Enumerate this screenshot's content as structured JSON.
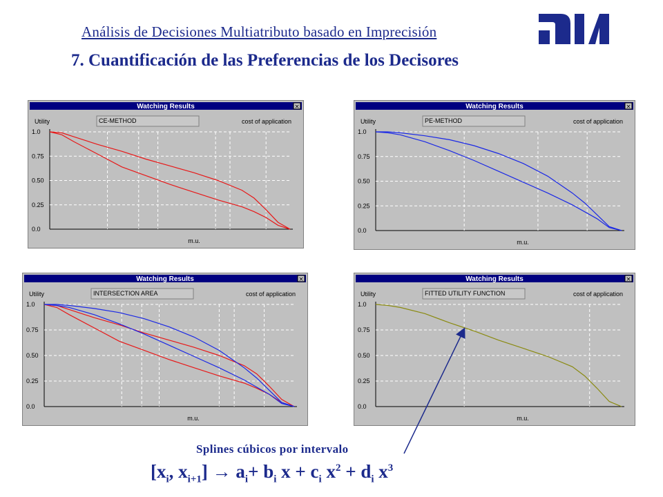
{
  "header": {
    "title": "Análisis de Decisiones Multiatributo basado en Imprecisión",
    "section_title": "7. Cuantificación de las Preferencias de los Decisores",
    "logo_label": "DIA"
  },
  "caption": {
    "text": "Splines cúbicos por intervalo",
    "formula": {
      "open": "[x",
      "i1": "i",
      "comma": ", x",
      "i2": "i+1",
      "close": "]",
      "arrow": "→",
      "a": " a",
      "ai": "i",
      "b": "+ b",
      "bi": "i",
      "bx": " x + c",
      "ci": "i",
      "cx": " x",
      "c2": "2",
      "d": " + d",
      "di": "i",
      "dx": " x",
      "d3": "3"
    }
  },
  "colors": {
    "red": "#e81818",
    "blue": "#1a28e6",
    "olive": "#8a8a10",
    "title_bar": "#000080",
    "text_blue": "#1c2a8c"
  },
  "chart_data": [
    {
      "type": "line",
      "window_title": "Watching Results",
      "ylabel": "Utility",
      "method": "CE-METHOD",
      "right_label": "cost of application",
      "xlabel": "m.u.",
      "yticks": [
        "1.0",
        "0.75",
        "0.50",
        "0.25",
        "0.0"
      ],
      "ylim": [
        0,
        1
      ],
      "xlim": [
        0,
        1
      ],
      "grid": true,
      "series": [
        {
          "color": "red",
          "x": [
            0,
            0.05,
            0.1,
            0.2,
            0.3,
            0.4,
            0.5,
            0.6,
            0.7,
            0.8,
            0.85,
            0.9,
            0.95,
            1.0
          ],
          "y": [
            1.0,
            0.99,
            0.95,
            0.87,
            0.8,
            0.72,
            0.65,
            0.58,
            0.5,
            0.4,
            0.32,
            0.2,
            0.07,
            0.0
          ]
        },
        {
          "color": "red",
          "x": [
            0,
            0.05,
            0.1,
            0.2,
            0.3,
            0.4,
            0.5,
            0.6,
            0.7,
            0.8,
            0.85,
            0.9,
            0.95,
            1.0
          ],
          "y": [
            1.0,
            0.97,
            0.9,
            0.77,
            0.64,
            0.55,
            0.46,
            0.38,
            0.3,
            0.23,
            0.18,
            0.12,
            0.04,
            0.0
          ]
        }
      ]
    },
    {
      "type": "line",
      "window_title": "Watching Results",
      "ylabel": "Utility",
      "method": "PE-METHOD",
      "right_label": "cost of application",
      "xlabel": "m.u.",
      "yticks": [
        "1.0",
        "0.75",
        "0.50",
        "0.25",
        "0.0"
      ],
      "ylim": [
        0,
        1
      ],
      "xlim": [
        0,
        1
      ],
      "grid": true,
      "series": [
        {
          "color": "blue",
          "x": [
            0,
            0.05,
            0.1,
            0.2,
            0.3,
            0.4,
            0.5,
            0.6,
            0.7,
            0.8,
            0.85,
            0.9,
            0.95,
            1.0
          ],
          "y": [
            1.0,
            1.0,
            0.99,
            0.96,
            0.92,
            0.86,
            0.78,
            0.68,
            0.55,
            0.38,
            0.28,
            0.16,
            0.04,
            0.0
          ]
        },
        {
          "color": "blue",
          "x": [
            0,
            0.05,
            0.1,
            0.2,
            0.3,
            0.4,
            0.5,
            0.6,
            0.7,
            0.8,
            0.85,
            0.9,
            0.95,
            1.0
          ],
          "y": [
            1.0,
            0.99,
            0.97,
            0.9,
            0.81,
            0.71,
            0.6,
            0.49,
            0.38,
            0.26,
            0.19,
            0.12,
            0.03,
            0.0
          ]
        }
      ]
    },
    {
      "type": "line",
      "window_title": "Watching Results",
      "ylabel": "Utility",
      "method": "INTERSECTION AREA",
      "right_label": "cost of application",
      "xlabel": "m.u.",
      "yticks": [
        "1.0",
        "0.75",
        "0.50",
        "0.25",
        "0.0"
      ],
      "ylim": [
        0,
        1
      ],
      "xlim": [
        0,
        1
      ],
      "grid": true,
      "series": [
        {
          "color": "red",
          "x": [
            0,
            0.05,
            0.1,
            0.2,
            0.3,
            0.4,
            0.5,
            0.6,
            0.7,
            0.8,
            0.85,
            0.9,
            0.95,
            1.0
          ],
          "y": [
            1.0,
            0.99,
            0.95,
            0.87,
            0.8,
            0.72,
            0.65,
            0.58,
            0.5,
            0.4,
            0.32,
            0.2,
            0.07,
            0.0
          ]
        },
        {
          "color": "red",
          "x": [
            0,
            0.05,
            0.1,
            0.2,
            0.3,
            0.4,
            0.5,
            0.6,
            0.7,
            0.8,
            0.85,
            0.9,
            0.95,
            1.0
          ],
          "y": [
            1.0,
            0.97,
            0.9,
            0.77,
            0.64,
            0.55,
            0.46,
            0.38,
            0.3,
            0.23,
            0.18,
            0.12,
            0.04,
            0.0
          ]
        },
        {
          "color": "blue",
          "x": [
            0,
            0.05,
            0.1,
            0.2,
            0.3,
            0.4,
            0.5,
            0.6,
            0.7,
            0.8,
            0.85,
            0.9,
            0.95,
            1.0
          ],
          "y": [
            1.0,
            1.0,
            0.99,
            0.96,
            0.92,
            0.86,
            0.78,
            0.68,
            0.55,
            0.38,
            0.28,
            0.16,
            0.04,
            0.0
          ]
        },
        {
          "color": "blue",
          "x": [
            0,
            0.05,
            0.1,
            0.2,
            0.3,
            0.4,
            0.5,
            0.6,
            0.7,
            0.8,
            0.85,
            0.9,
            0.95,
            1.0
          ],
          "y": [
            1.0,
            0.99,
            0.97,
            0.9,
            0.81,
            0.71,
            0.6,
            0.49,
            0.38,
            0.26,
            0.19,
            0.12,
            0.03,
            0.0
          ]
        }
      ]
    },
    {
      "type": "line",
      "window_title": "Watching Results",
      "ylabel": "Utility",
      "method": "FITTED UTILITY FUNCTION",
      "right_label": "cost of application",
      "xlabel": "m.u.",
      "yticks": [
        "1.0",
        "0.75",
        "0.50",
        "0.25",
        "0.0"
      ],
      "ylim": [
        0,
        1
      ],
      "xlim": [
        0,
        1
      ],
      "grid": true,
      "series": [
        {
          "color": "olive",
          "x": [
            0,
            0.05,
            0.1,
            0.2,
            0.3,
            0.4,
            0.5,
            0.6,
            0.7,
            0.8,
            0.85,
            0.9,
            0.95,
            1.0
          ],
          "y": [
            1.0,
            0.99,
            0.97,
            0.91,
            0.82,
            0.74,
            0.65,
            0.57,
            0.49,
            0.39,
            0.3,
            0.18,
            0.05,
            0.0
          ]
        }
      ]
    }
  ]
}
